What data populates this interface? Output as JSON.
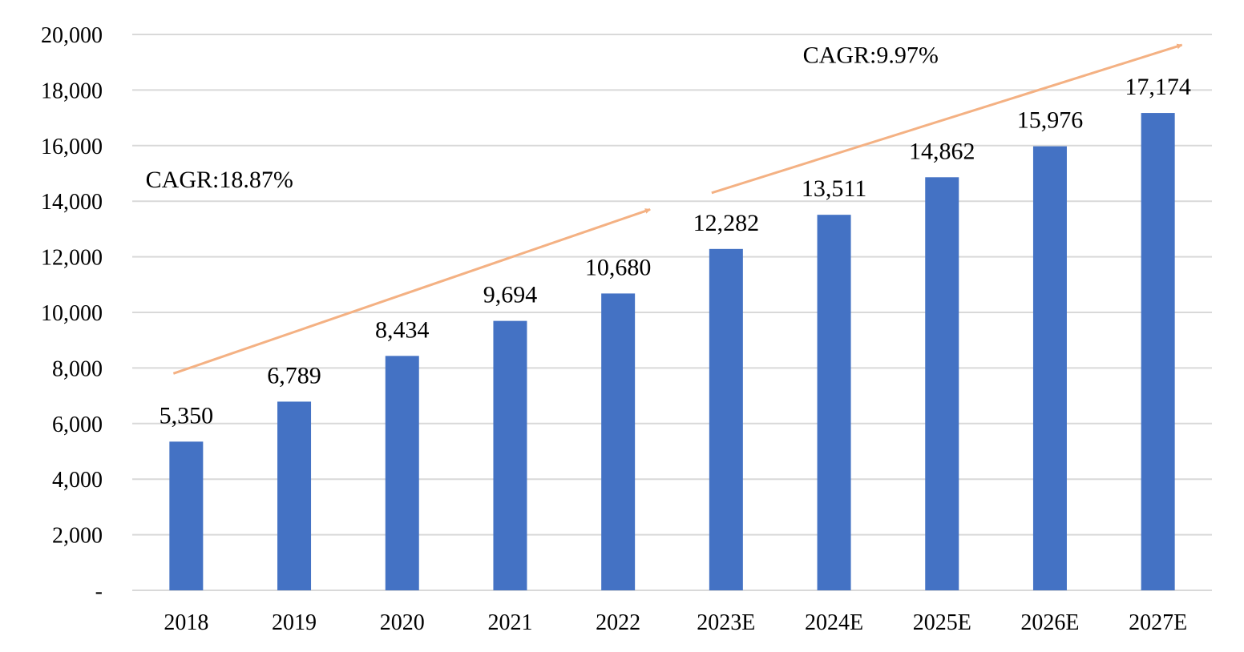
{
  "chart_data": {
    "type": "bar",
    "title": "",
    "xlabel": "",
    "ylabel": "",
    "categories": [
      "2018",
      "2019",
      "2020",
      "2021",
      "2022",
      "2023E",
      "2024E",
      "2025E",
      "2026E",
      "2027E"
    ],
    "values": [
      5350,
      6789,
      8434,
      9694,
      10680,
      12282,
      13511,
      14862,
      15976,
      17174
    ],
    "value_labels": [
      "5,350",
      "6,789",
      "8,434",
      "9,694",
      "10,680",
      "12,282",
      "13,511",
      "14,862",
      "15,976",
      "17,174"
    ],
    "ylim": [
      0,
      20000
    ],
    "yticks": [
      0,
      2000,
      4000,
      6000,
      8000,
      10000,
      12000,
      14000,
      16000,
      18000,
      20000
    ],
    "ytick_labels": [
      "-",
      "2,000",
      "4,000",
      "6,000",
      "8,000",
      "10,000",
      "12,000",
      "14,000",
      "16,000",
      "18,000",
      "20,000"
    ],
    "grid": true,
    "bar_color": "#4472C4",
    "annotations": [
      {
        "text": "CAGR:18.87%",
        "from_category": "2018",
        "to_category": "2022",
        "color": "#F4B183"
      },
      {
        "text": "CAGR:9.97%",
        "from_category": "2023E",
        "to_category": "2027E",
        "color": "#F4B183"
      }
    ]
  }
}
